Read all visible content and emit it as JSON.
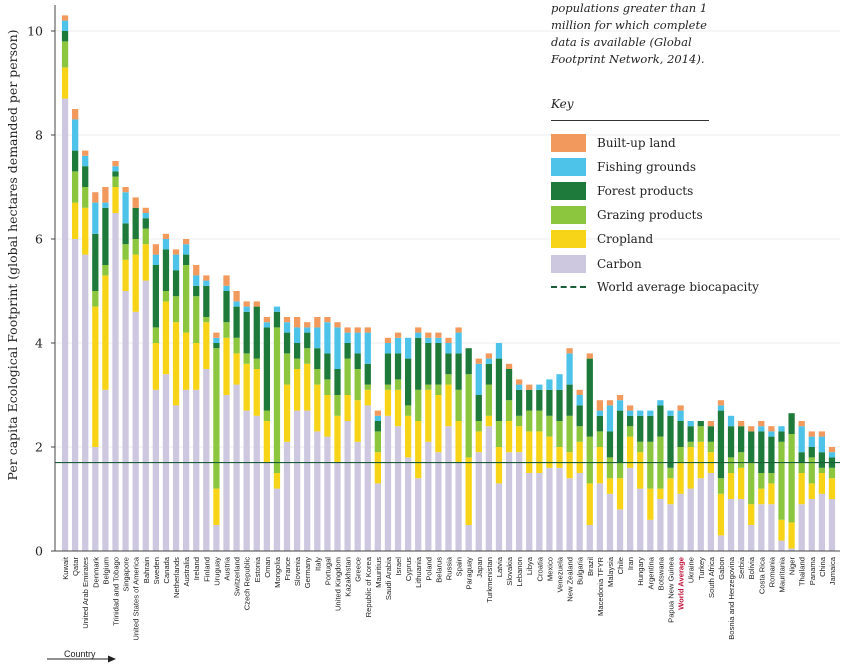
{
  "note_lines": [
    "populations greater than 1",
    "million for which complete",
    "data is available (Global",
    "Footprint Network, 2014)."
  ],
  "key": {
    "title": "Key",
    "items": [
      {
        "label": "Built-up land",
        "color": "#f29a5e"
      },
      {
        "label": "Fishing grounds",
        "color": "#4ec3ea"
      },
      {
        "label": "Forest products",
        "color": "#1d7a3a"
      },
      {
        "label": "Grazing products",
        "color": "#8cc63f"
      },
      {
        "label": "Cropland",
        "color": "#f7d417"
      },
      {
        "label": "Carbon",
        "color": "#cdc8e0"
      }
    ],
    "line_label": "World average biocapacity",
    "line_color": "#1a5e3a"
  },
  "x_annotation": "Country",
  "chart_data": {
    "type": "bar",
    "stacked": true,
    "ylabel": "Per capita Ecological Footprint (global hectares demanded per person)",
    "xlabel": "Country",
    "ylim": [
      0,
      10.5
    ],
    "yticks": [
      0,
      2,
      4,
      6,
      8,
      10
    ],
    "reference_line": {
      "label": "World average biocapacity",
      "value": 1.7
    },
    "highlight_category": "World Average",
    "highlight_color": "#c0143c",
    "categories": [
      "Kuwait",
      "Qatar",
      "United Arab Emirates",
      "Denmark",
      "Belgium",
      "Trinidad and Tobago",
      "Singapore",
      "United States of America",
      "Bahrain",
      "Sweden",
      "Canada",
      "Netherlands",
      "Australia",
      "Ireland",
      "Finland",
      "Uruguay",
      "Austria",
      "Switzerland",
      "Czech Republic",
      "Estonia",
      "Oman",
      "Mongolia",
      "France",
      "Slovenia",
      "Germany",
      "Italy",
      "Portugal",
      "United Kingdom",
      "Kazakhstan",
      "Greece",
      "Republic of Korea",
      "Mauritius",
      "Saudi Arabia",
      "Israel",
      "Cyprus",
      "Lithuania",
      "Poland",
      "Belarus",
      "Russia",
      "Spain",
      "Paraguay",
      "Japan",
      "Turkmenistan",
      "Latvia",
      "Slovakia",
      "Lebanon",
      "Libya",
      "Croatia",
      "Mexico",
      "Venezuela",
      "New Zealand",
      "Bulgaria",
      "Brazil",
      "Macedonia TFYR",
      "Malaysia",
      "Chile",
      "Iran",
      "Hungary",
      "Argentina",
      "Botswana",
      "Papua New Guinea",
      "World Average",
      "Ukraine",
      "Turkey",
      "South Africa",
      "Gabon",
      "Bosnia and Herzegovina",
      "Serbia",
      "Bolivia",
      "Costa Rica",
      "Romania",
      "Mauritania",
      "Niger",
      "Thailand",
      "Panama",
      "China",
      "Jamaica"
    ],
    "series": [
      {
        "name": "Carbon",
        "values": [
          8.7,
          6.0,
          5.7,
          2.0,
          3.1,
          6.5,
          5.0,
          4.6,
          5.2,
          3.1,
          3.4,
          2.8,
          3.1,
          3.1,
          3.5,
          0.5,
          3.0,
          3.2,
          2.7,
          2.6,
          1.7,
          1.2,
          2.1,
          2.7,
          2.7,
          2.3,
          2.2,
          1.7,
          2.5,
          2.1,
          2.8,
          1.3,
          2.6,
          2.4,
          1.8,
          1.4,
          2.1,
          1.9,
          2.4,
          1.7,
          0.5,
          1.9,
          2.4,
          1.3,
          1.9,
          1.9,
          1.5,
          1.5,
          1.6,
          1.6,
          1.4,
          1.5,
          0.5,
          1.3,
          1.1,
          0.8,
          1.6,
          1.2,
          0.6,
          1.0,
          0.9,
          1.1,
          1.2,
          1.4,
          1.5,
          0.3,
          1.0,
          1.0,
          0.5,
          0.9,
          0.9,
          0.2,
          0.05,
          0.9,
          1.0,
          1.1,
          1.0
        ]
      },
      {
        "name": "Cropland",
        "values": [
          0.6,
          0.7,
          0.9,
          2.7,
          2.2,
          0.5,
          0.6,
          1.1,
          0.7,
          0.9,
          1.4,
          1.6,
          1.1,
          0.9,
          0.9,
          0.7,
          1.1,
          0.6,
          0.9,
          0.9,
          0.8,
          0.3,
          1.1,
          0.8,
          0.9,
          0.9,
          0.8,
          0.9,
          0.5,
          0.8,
          0.3,
          0.6,
          0.5,
          0.7,
          0.8,
          1.1,
          1.0,
          1.1,
          0.8,
          0.8,
          1.3,
          0.4,
          0.2,
          0.7,
          0.6,
          0.5,
          0.8,
          0.8,
          0.6,
          0.4,
          0.5,
          0.6,
          0.8,
          0.7,
          0.3,
          0.6,
          0.6,
          0.7,
          0.6,
          0.2,
          0.5,
          0.6,
          0.8,
          0.7,
          0.4,
          0.8,
          0.5,
          0.6,
          0.4,
          0.3,
          0.4,
          0.4,
          0.5,
          0.6,
          0.3,
          0.4,
          0.4
        ]
      },
      {
        "name": "Grazing products",
        "values": [
          0.5,
          0.6,
          0.4,
          0.3,
          0.2,
          0.2,
          0.3,
          0.3,
          0.3,
          0.3,
          0.2,
          0.5,
          1.3,
          0.9,
          0.1,
          2.7,
          0.3,
          0.3,
          0.2,
          0.2,
          0.2,
          2.8,
          0.6,
          0.2,
          0.3,
          0.3,
          0.3,
          0.4,
          0.7,
          0.6,
          0.1,
          0.4,
          0.1,
          0.2,
          0.2,
          0.6,
          0.1,
          0.2,
          0.2,
          0.6,
          1.6,
          0.2,
          0.6,
          0.5,
          0.4,
          0.2,
          0.4,
          0.4,
          0.4,
          0.5,
          0.7,
          0.3,
          0.9,
          0.3,
          0.4,
          0.3,
          0.2,
          0.2,
          0.9,
          1.0,
          0.2,
          0.3,
          0.1,
          0.3,
          0.2,
          0.3,
          0.3,
          0.3,
          0.8,
          0.3,
          0.2,
          1.5,
          1.7,
          0.2,
          0.5,
          0.1,
          0.2
        ]
      },
      {
        "name": "Forest products",
        "values": [
          0.2,
          0.4,
          0.4,
          1.1,
          1.1,
          0.1,
          0.4,
          0.6,
          0.2,
          1.2,
          0.8,
          0.5,
          0.2,
          0.2,
          0.6,
          0.1,
          0.6,
          0.6,
          0.8,
          1.0,
          1.6,
          0.3,
          0.4,
          0.3,
          0.3,
          0.4,
          0.5,
          0.5,
          0.3,
          0.3,
          0.4,
          0.2,
          0.6,
          0.5,
          0.9,
          1.0,
          0.8,
          0.8,
          0.4,
          0.7,
          0.5,
          0.5,
          0.4,
          1.2,
          0.6,
          0.5,
          0.4,
          0.4,
          0.5,
          0.6,
          0.6,
          0.4,
          1.5,
          0.3,
          0.5,
          1.0,
          0.2,
          0.5,
          0.5,
          0.6,
          1.0,
          0.5,
          0.3,
          0.1,
          0.3,
          1.3,
          0.6,
          0.5,
          0.6,
          0.8,
          0.7,
          0.2,
          0.4,
          0.2,
          0.2,
          0.3,
          0.2
        ]
      },
      {
        "name": "Fishing grounds",
        "values": [
          0.2,
          0.6,
          0.2,
          0.6,
          0.1,
          0.1,
          0.6,
          0.0,
          0.1,
          0.2,
          0.2,
          0.3,
          0.2,
          0.2,
          0.1,
          0.1,
          0.1,
          0.1,
          0.1,
          0.0,
          0.1,
          0.1,
          0.2,
          0.3,
          0.1,
          0.4,
          0.6,
          0.8,
          0.2,
          0.4,
          0.6,
          0.1,
          0.2,
          0.3,
          0.4,
          0.1,
          0.1,
          0.1,
          0.2,
          0.4,
          0.0,
          0.6,
          0.1,
          0.3,
          0.0,
          0.1,
          0.0,
          0.1,
          0.2,
          0.3,
          0.6,
          0.2,
          0.0,
          0.1,
          0.5,
          0.2,
          0.1,
          0.1,
          0.1,
          0.1,
          0.1,
          0.2,
          0.1,
          0.0,
          0.0,
          0.1,
          0.2,
          0.0,
          0.0,
          0.1,
          0.1,
          0.1,
          0.0,
          0.5,
          0.2,
          0.3,
          0.1
        ]
      },
      {
        "name": "Built-up land",
        "values": [
          0.1,
          0.2,
          0.1,
          0.2,
          0.3,
          0.1,
          0.1,
          0.2,
          0.1,
          0.2,
          0.1,
          0.1,
          0.1,
          0.2,
          0.1,
          0.1,
          0.2,
          0.2,
          0.1,
          0.1,
          0.1,
          0.0,
          0.1,
          0.2,
          0.1,
          0.2,
          0.1,
          0.1,
          0.1,
          0.1,
          0.1,
          0.1,
          0.1,
          0.1,
          0.0,
          0.1,
          0.1,
          0.1,
          0.1,
          0.1,
          0.0,
          0.1,
          0.1,
          0.0,
          0.1,
          0.1,
          0.1,
          0.0,
          0.0,
          0.0,
          0.1,
          0.1,
          0.1,
          0.2,
          0.1,
          0.1,
          0.1,
          0.0,
          0.0,
          0.0,
          0.0,
          0.1,
          0.0,
          0.0,
          0.1,
          0.1,
          0.0,
          0.1,
          0.1,
          0.1,
          0.1,
          0.0,
          0.0,
          0.1,
          0.1,
          0.1,
          0.1
        ]
      }
    ]
  }
}
